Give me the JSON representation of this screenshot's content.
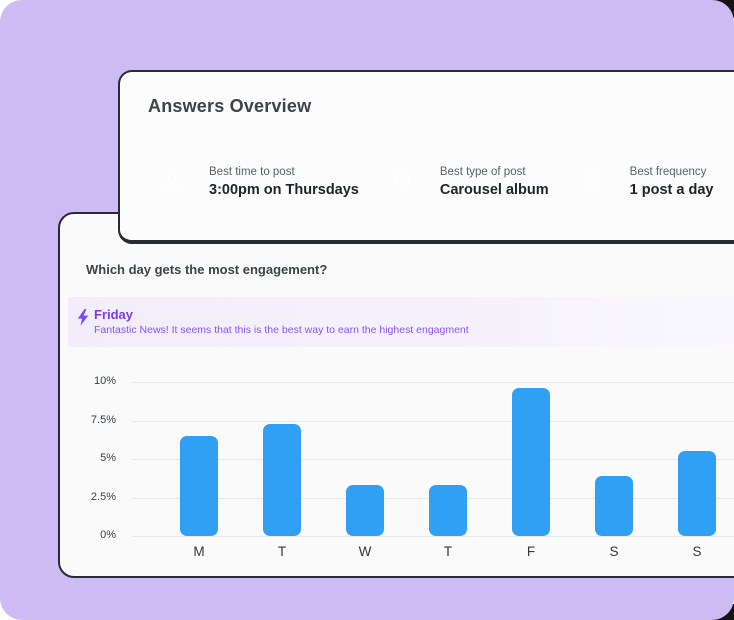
{
  "background": {
    "color": "#CEBBF4"
  },
  "overview_card": {
    "title": "Answers Overview",
    "accent_color": "#2FA0F4",
    "stats": [
      {
        "icon": "user-icon",
        "label": "Best time to post",
        "value": "3:00pm on Thursdays"
      },
      {
        "icon": "map-pin-icon",
        "label": "Best type of post",
        "value": "Carousel album"
      },
      {
        "icon": "map-pin-icon",
        "label": "Best frequency",
        "value": "1 post a day"
      }
    ]
  },
  "engagement_card": {
    "title": "Which day gets the most engagement?",
    "insight": {
      "icon": "lightning-bolt-icon",
      "day": "Friday",
      "message": "Fantastic News! It seems that this is the best way to earn the highest engagment",
      "accent_color": "#7C3BE2"
    }
  },
  "chart_data": {
    "type": "bar",
    "title": "Which day gets the most engagement?",
    "categories": [
      "M",
      "T",
      "W",
      "T",
      "F",
      "S",
      "S"
    ],
    "values": [
      6.5,
      7.3,
      3.3,
      3.3,
      9.6,
      3.9,
      5.5
    ],
    "xlabel": "",
    "ylabel": "",
    "ylim": [
      0,
      10
    ],
    "ytick_labels": [
      "10%",
      "7.5%",
      "5%",
      "2.5%",
      "0%"
    ],
    "grid": true,
    "legend": false,
    "bar_color": "#2FA0F4"
  }
}
